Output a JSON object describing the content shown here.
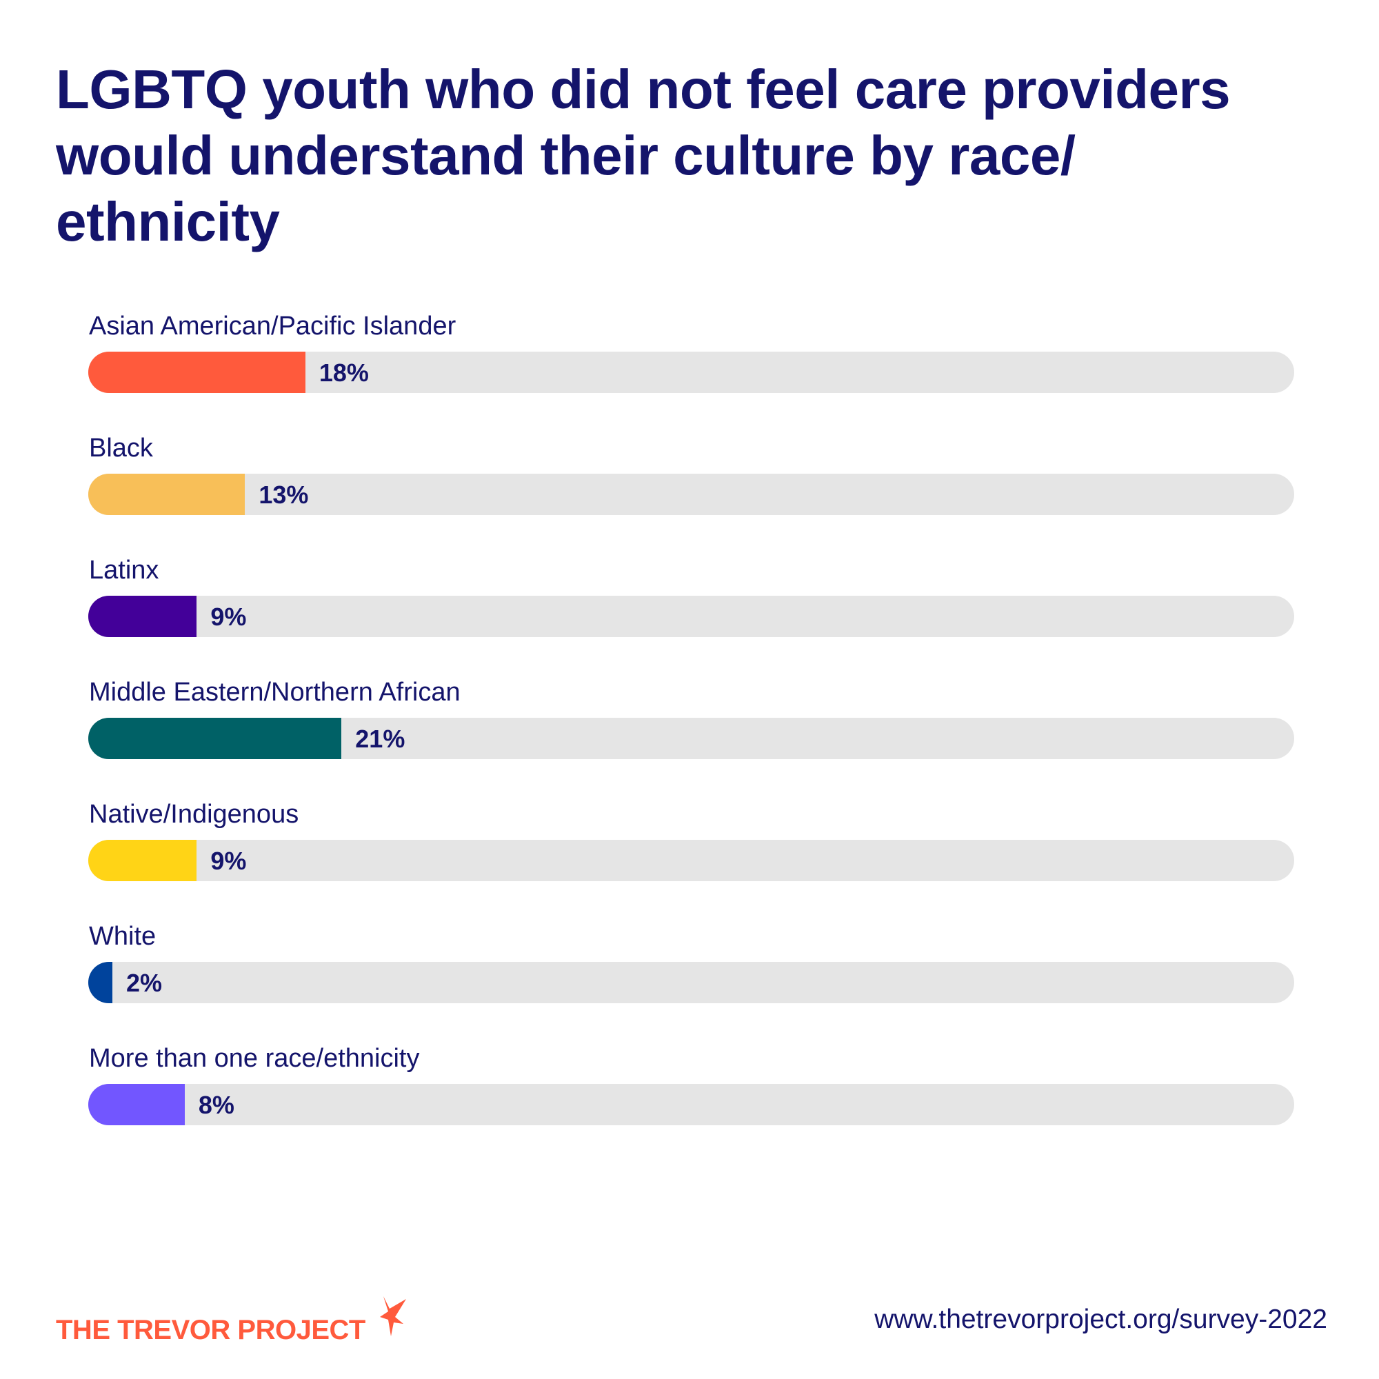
{
  "chart_data": {
    "type": "bar",
    "orientation": "horizontal",
    "title": "LGBTQ youth who did not feel care providers would understand their culture by race/ ethnicity",
    "categories": [
      "Asian American/Pacific Islander",
      "Black",
      "Latinx",
      "Middle Eastern/Northern African",
      "Native/Indigenous",
      "White",
      "More than one race/ethnicity"
    ],
    "values": [
      18,
      13,
      9,
      21,
      9,
      2,
      8
    ],
    "value_labels": [
      "18%",
      "13%",
      "9%",
      "21%",
      "9%",
      "2%",
      "8%"
    ],
    "xlim": [
      0,
      100
    ],
    "colors": [
      "#ff5a3c",
      "#f8bf58",
      "#430099",
      "#006166",
      "#ffd416",
      "#00439c",
      "#7256ff"
    ],
    "track_color": "#e5e5e5",
    "grid": false,
    "legend": "none"
  },
  "footer": {
    "logo": "THE TREVOR PROJECT",
    "url": "www.thetrevorproject.org/survey-2022"
  }
}
